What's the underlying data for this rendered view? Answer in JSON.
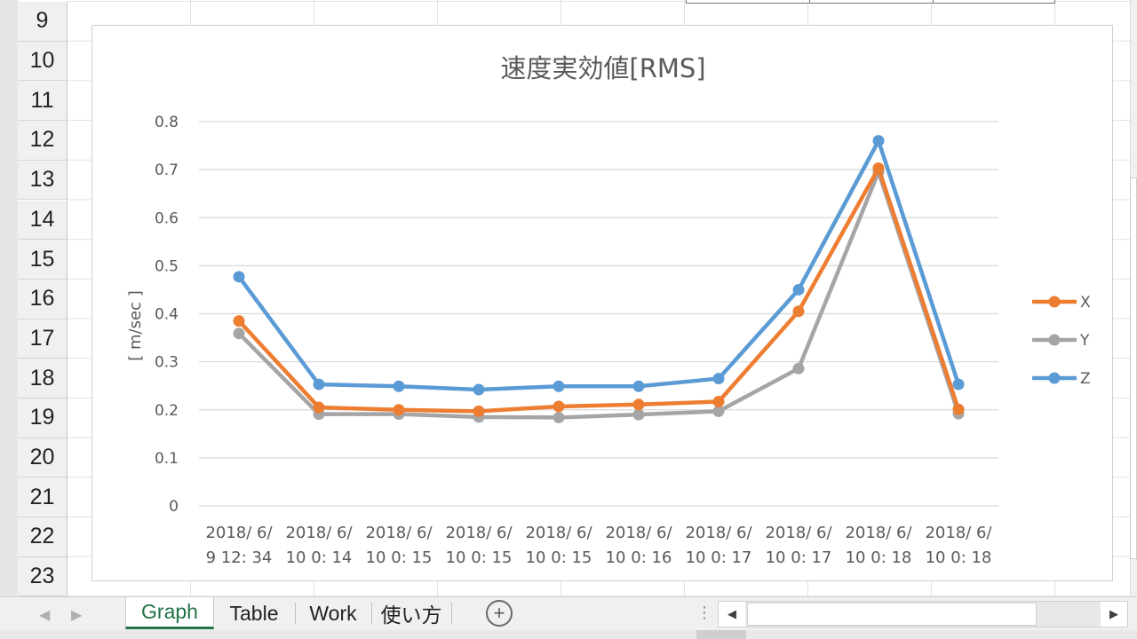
{
  "rows": [
    "9",
    "10",
    "11",
    "12",
    "13",
    "14",
    "15",
    "16",
    "17",
    "18",
    "19",
    "20",
    "21",
    "22",
    "23"
  ],
  "sheet_tabs": [
    {
      "label": "Graph",
      "active": true
    },
    {
      "label": "Table",
      "active": false
    },
    {
      "label": "Work",
      "active": false
    },
    {
      "label": "使い方",
      "active": false
    }
  ],
  "icons": {
    "add_sheet": "plus-circle-icon",
    "nav_prev": "triangle-left-icon",
    "nav_next": "triangle-right-icon",
    "scroll_left": "triangle-left-icon",
    "scroll_right": "triangle-right-icon",
    "grip": "vertical-dots-icon"
  },
  "colors": {
    "X": "#ed7d31",
    "Y": "#a5a5a5",
    "Z": "#5b9bd5",
    "active_tab": "#217346"
  },
  "chart_data": {
    "type": "line",
    "title": "速度実効値[RMS]",
    "ylabel": "[ m/sec ]",
    "xlabel": "",
    "ylim": [
      0,
      0.8
    ],
    "yticks": [
      "0.8",
      "0.7",
      "0.6",
      "0.5",
      "0.4",
      "0.3",
      "0.2",
      "0.1",
      "0"
    ],
    "categories": [
      [
        "2018/ 6/",
        "9 12: 34"
      ],
      [
        "2018/ 6/",
        "10 0: 14"
      ],
      [
        "2018/ 6/",
        "10 0: 15"
      ],
      [
        "2018/ 6/",
        "10 0: 15"
      ],
      [
        "2018/ 6/",
        "10 0: 15"
      ],
      [
        "2018/ 6/",
        "10 0: 16"
      ],
      [
        "2018/ 6/",
        "10 0: 17"
      ],
      [
        "2018/ 6/",
        "10 0: 17"
      ],
      [
        "2018/ 6/",
        "10 0: 18"
      ],
      [
        "2018/ 6/",
        "10 0: 18"
      ]
    ],
    "series": [
      {
        "name": "X",
        "color": "#ed7d31",
        "values": [
          0.385,
          0.205,
          0.2,
          0.197,
          0.207,
          0.211,
          0.217,
          0.405,
          0.703,
          0.201
        ]
      },
      {
        "name": "Y",
        "color": "#a5a5a5",
        "values": [
          0.359,
          0.191,
          0.191,
          0.185,
          0.184,
          0.19,
          0.197,
          0.286,
          0.695,
          0.192
        ]
      },
      {
        "name": "Z",
        "color": "#5b9bd5",
        "values": [
          0.477,
          0.253,
          0.249,
          0.242,
          0.249,
          0.249,
          0.265,
          0.45,
          0.76,
          0.253
        ]
      }
    ],
    "legend_position": "right",
    "grid": true
  }
}
